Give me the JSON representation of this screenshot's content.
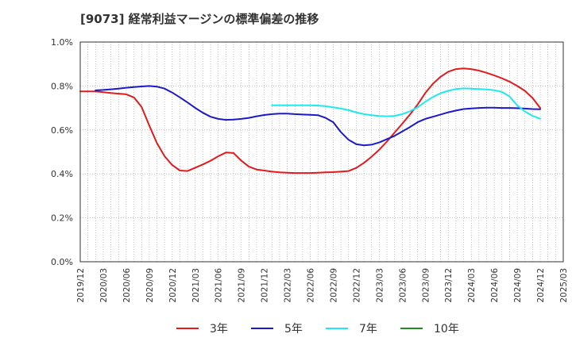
{
  "chart_data": {
    "type": "line",
    "title": "[9073]  経常利益マージンの標準偏差の推移",
    "xlabel": "",
    "ylabel": "",
    "ylim": [
      0,
      1.0
    ],
    "y_ticks": [
      "0.0%",
      "0.2%",
      "0.4%",
      "0.6%",
      "0.8%",
      "1.0%"
    ],
    "x_ticks": [
      "2019/12",
      "2020/03",
      "2020/06",
      "2020/09",
      "2020/12",
      "2021/03",
      "2021/06",
      "2021/09",
      "2021/12",
      "2022/03",
      "2022/06",
      "2022/09",
      "2022/12",
      "2023/03",
      "2023/06",
      "2023/09",
      "2023/12",
      "2024/03",
      "2024/06",
      "2024/09",
      "2024/12",
      "2025/03"
    ],
    "x_start": "2019/12",
    "x_end": "2025/03",
    "grid": true,
    "legend_position": "bottom",
    "series": [
      {
        "name": "3年",
        "color": "#e31a1c",
        "points": [
          [
            "2019/12",
            0.775
          ],
          [
            "2020/01",
            0.775
          ],
          [
            "2020/02",
            0.775
          ],
          [
            "2020/03",
            0.772
          ],
          [
            "2020/04",
            0.768
          ],
          [
            "2020/05",
            0.765
          ],
          [
            "2020/06",
            0.762
          ],
          [
            "2020/07",
            0.748
          ],
          [
            "2020/08",
            0.705
          ],
          [
            "2020/09",
            0.62
          ],
          [
            "2020/10",
            0.54
          ],
          [
            "2020/11",
            0.48
          ],
          [
            "2020/12",
            0.44
          ],
          [
            "2021/01",
            0.415
          ],
          [
            "2021/02",
            0.413
          ],
          [
            "2021/03",
            0.428
          ],
          [
            "2021/04",
            0.443
          ],
          [
            "2021/05",
            0.46
          ],
          [
            "2021/06",
            0.48
          ],
          [
            "2021/07",
            0.497
          ],
          [
            "2021/08",
            0.495
          ],
          [
            "2021/09",
            0.46
          ],
          [
            "2021/10",
            0.433
          ],
          [
            "2021/11",
            0.42
          ],
          [
            "2021/12",
            0.415
          ],
          [
            "2022/01",
            0.41
          ],
          [
            "2022/02",
            0.407
          ],
          [
            "2022/03",
            0.405
          ],
          [
            "2022/04",
            0.404
          ],
          [
            "2022/05",
            0.404
          ],
          [
            "2022/06",
            0.404
          ],
          [
            "2022/07",
            0.405
          ],
          [
            "2022/08",
            0.407
          ],
          [
            "2022/09",
            0.408
          ],
          [
            "2022/10",
            0.41
          ],
          [
            "2022/11",
            0.413
          ],
          [
            "2022/12",
            0.427
          ],
          [
            "2023/01",
            0.45
          ],
          [
            "2023/02",
            0.478
          ],
          [
            "2023/03",
            0.51
          ],
          [
            "2023/04",
            0.547
          ],
          [
            "2023/05",
            0.588
          ],
          [
            "2023/06",
            0.628
          ],
          [
            "2023/07",
            0.67
          ],
          [
            "2023/08",
            0.715
          ],
          [
            "2023/09",
            0.768
          ],
          [
            "2023/10",
            0.81
          ],
          [
            "2023/11",
            0.842
          ],
          [
            "2023/12",
            0.865
          ],
          [
            "2024/01",
            0.877
          ],
          [
            "2024/02",
            0.88
          ],
          [
            "2024/03",
            0.877
          ],
          [
            "2024/04",
            0.87
          ],
          [
            "2024/05",
            0.86
          ],
          [
            "2024/06",
            0.848
          ],
          [
            "2024/07",
            0.835
          ],
          [
            "2024/08",
            0.82
          ],
          [
            "2024/09",
            0.8
          ],
          [
            "2024/10",
            0.778
          ],
          [
            "2024/11",
            0.745
          ],
          [
            "2024/12",
            0.7
          ]
        ]
      },
      {
        "name": "5年",
        "color": "#1a1ac8",
        "points": [
          [
            "2020/02",
            0.78
          ],
          [
            "2020/03",
            0.782
          ],
          [
            "2020/04",
            0.785
          ],
          [
            "2020/05",
            0.788
          ],
          [
            "2020/06",
            0.792
          ],
          [
            "2020/07",
            0.795
          ],
          [
            "2020/08",
            0.798
          ],
          [
            "2020/09",
            0.8
          ],
          [
            "2020/10",
            0.797
          ],
          [
            "2020/11",
            0.788
          ],
          [
            "2020/12",
            0.77
          ],
          [
            "2021/01",
            0.748
          ],
          [
            "2021/02",
            0.725
          ],
          [
            "2021/03",
            0.7
          ],
          [
            "2021/04",
            0.678
          ],
          [
            "2021/05",
            0.66
          ],
          [
            "2021/06",
            0.65
          ],
          [
            "2021/07",
            0.646
          ],
          [
            "2021/08",
            0.647
          ],
          [
            "2021/09",
            0.65
          ],
          [
            "2021/10",
            0.655
          ],
          [
            "2021/11",
            0.662
          ],
          [
            "2021/12",
            0.668
          ],
          [
            "2022/01",
            0.672
          ],
          [
            "2022/02",
            0.674
          ],
          [
            "2022/03",
            0.674
          ],
          [
            "2022/04",
            0.672
          ],
          [
            "2022/05",
            0.67
          ],
          [
            "2022/06",
            0.669
          ],
          [
            "2022/07",
            0.667
          ],
          [
            "2022/08",
            0.655
          ],
          [
            "2022/09",
            0.635
          ],
          [
            "2022/10",
            0.59
          ],
          [
            "2022/11",
            0.555
          ],
          [
            "2022/12",
            0.535
          ],
          [
            "2023/01",
            0.53
          ],
          [
            "2023/02",
            0.533
          ],
          [
            "2023/03",
            0.543
          ],
          [
            "2023/04",
            0.558
          ],
          [
            "2023/05",
            0.573
          ],
          [
            "2023/06",
            0.593
          ],
          [
            "2023/07",
            0.613
          ],
          [
            "2023/08",
            0.635
          ],
          [
            "2023/09",
            0.65
          ],
          [
            "2023/10",
            0.66
          ],
          [
            "2023/11",
            0.67
          ],
          [
            "2023/12",
            0.68
          ],
          [
            "2024/01",
            0.688
          ],
          [
            "2024/02",
            0.695
          ],
          [
            "2024/03",
            0.698
          ],
          [
            "2024/04",
            0.7
          ],
          [
            "2024/05",
            0.701
          ],
          [
            "2024/06",
            0.701
          ],
          [
            "2024/07",
            0.7
          ],
          [
            "2024/08",
            0.7
          ],
          [
            "2024/09",
            0.699
          ],
          [
            "2024/10",
            0.697
          ],
          [
            "2024/11",
            0.695
          ],
          [
            "2024/12",
            0.694
          ]
        ]
      },
      {
        "name": "7年",
        "color": "#1ee8f0",
        "points": [
          [
            "2022/01",
            0.712
          ],
          [
            "2022/02",
            0.712
          ],
          [
            "2022/03",
            0.712
          ],
          [
            "2022/04",
            0.712
          ],
          [
            "2022/05",
            0.712
          ],
          [
            "2022/06",
            0.712
          ],
          [
            "2022/07",
            0.711
          ],
          [
            "2022/08",
            0.708
          ],
          [
            "2022/09",
            0.703
          ],
          [
            "2022/10",
            0.697
          ],
          [
            "2022/11",
            0.69
          ],
          [
            "2022/12",
            0.68
          ],
          [
            "2023/01",
            0.672
          ],
          [
            "2023/02",
            0.667
          ],
          [
            "2023/03",
            0.663
          ],
          [
            "2023/04",
            0.662
          ],
          [
            "2023/05",
            0.664
          ],
          [
            "2023/06",
            0.672
          ],
          [
            "2023/07",
            0.685
          ],
          [
            "2023/08",
            0.703
          ],
          [
            "2023/09",
            0.728
          ],
          [
            "2023/10",
            0.75
          ],
          [
            "2023/11",
            0.767
          ],
          [
            "2023/12",
            0.778
          ],
          [
            "2024/01",
            0.786
          ],
          [
            "2024/02",
            0.789
          ],
          [
            "2024/03",
            0.788
          ],
          [
            "2024/04",
            0.786
          ],
          [
            "2024/05",
            0.784
          ],
          [
            "2024/06",
            0.781
          ],
          [
            "2024/07",
            0.773
          ],
          [
            "2024/08",
            0.752
          ],
          [
            "2024/09",
            0.712
          ],
          [
            "2024/10",
            0.684
          ],
          [
            "2024/11",
            0.664
          ],
          [
            "2024/12",
            0.651
          ]
        ]
      },
      {
        "name": "10年",
        "color": "#228b22",
        "points": []
      }
    ]
  }
}
